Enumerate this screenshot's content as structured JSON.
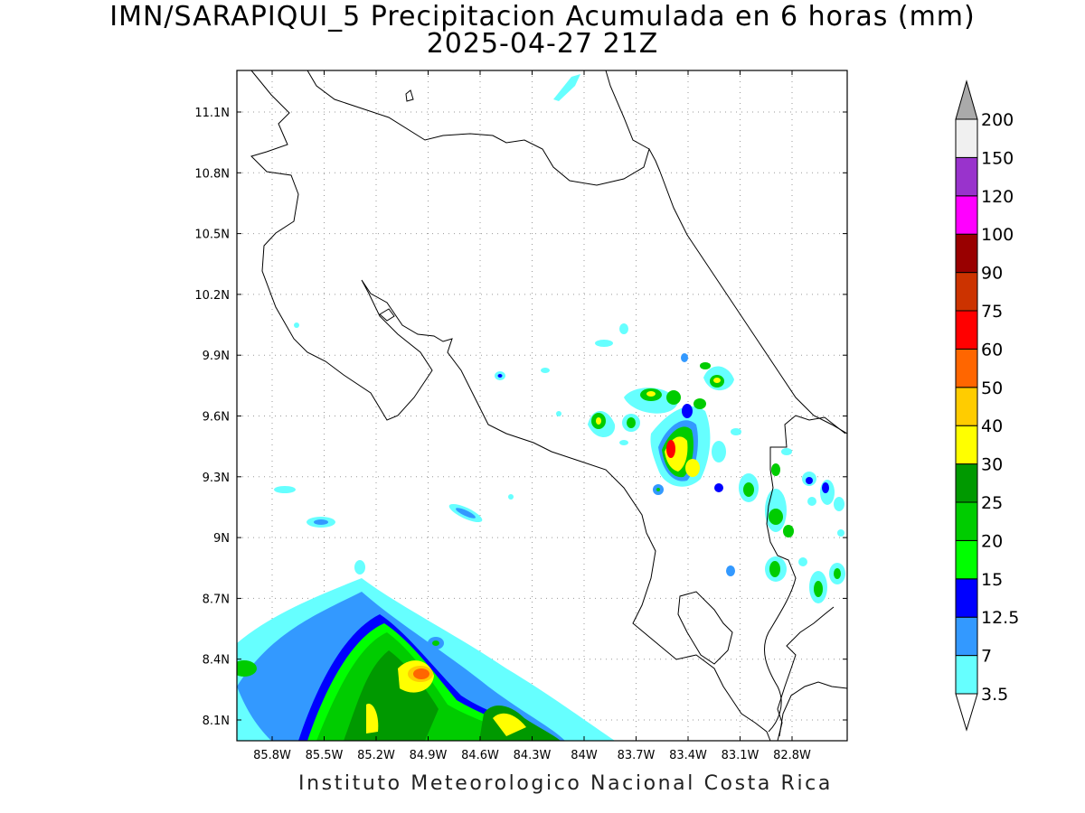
{
  "title": "IMN/SARAPIQUI_5 Precipitacion Acumulada en 6 horas (mm)",
  "subtitle": "2025-04-27 21Z",
  "footer": "Instituto Meteorologico Nacional Costa Rica",
  "map": {
    "lon_range": [
      -86.05,
      -82.35
    ],
    "lat_range": [
      8.0,
      11.3
    ],
    "lat_ticks": [
      "11.1N",
      "10.8N",
      "10.5N",
      "10.2N",
      "9.9N",
      "9.6N",
      "9.3N",
      "9N",
      "8.7N",
      "8.4N",
      "8.1N"
    ],
    "lon_ticks": [
      "85.8W",
      "85.5W",
      "85.2W",
      "84.9W",
      "84.6W",
      "84.3W",
      "84W",
      "83.7W",
      "83.4W",
      "83.1W",
      "82.8W"
    ],
    "grid": true
  },
  "colorbar": {
    "levels": [
      "3.5",
      "7",
      "12.5",
      "15",
      "20",
      "25",
      "30",
      "40",
      "50",
      "60",
      "75",
      "90",
      "100",
      "120",
      "150",
      "200"
    ],
    "colors": [
      "#66ffff",
      "#3399ff",
      "#0000ff",
      "#00ff00",
      "#00cc00",
      "#009900",
      "#ffff00",
      "#ffcc00",
      "#ff6600",
      "#ff0000",
      "#cc3300",
      "#990000",
      "#ff00ff",
      "#9933cc",
      "#f0f0f0"
    ],
    "arrow_top_color": "#aaaaaa",
    "arrow_bottom_color": "#ffffff"
  }
}
